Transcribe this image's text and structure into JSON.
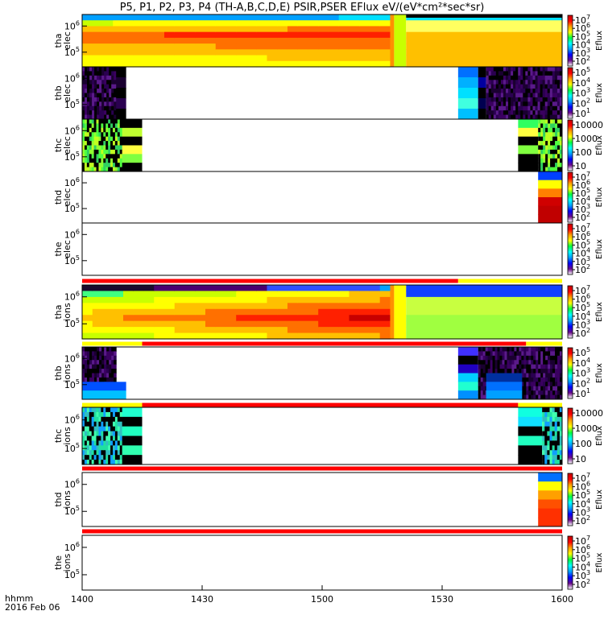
{
  "title": "P5, P1, P2, P3, P4 (TH-A,B,C,D,E) PSIR,PSER EFlux eV/(eV*cm²*sec*sr)",
  "footer": {
    "line1": "hhmm",
    "line2": "2016 Feb 06"
  },
  "x_axis": {
    "ticks": [
      "1400",
      "1430",
      "1500",
      "1530",
      "1600"
    ],
    "range_minutes_after_1400": [
      0,
      120
    ]
  },
  "colorbar_label": "Eflux",
  "chart_data": {
    "type": "heatmap",
    "x_unit": "time (hhmm), 2016 Feb 06",
    "y_scale": "log",
    "panels": [
      {
        "id": "tha_elec",
        "ylabel": [
          "tha",
          "elec"
        ],
        "y_ticks": [
          "10⁶",
          "10⁵"
        ],
        "cbar_ticks": [
          "10⁷",
          "10⁶",
          "10⁵",
          "10⁴",
          "10³",
          "10²"
        ],
        "cbar_label": "Eflux",
        "data_coverage_minutes": [
          [
            0,
            120
          ]
        ]
      },
      {
        "id": "thb_elec",
        "ylabel": [
          "thb",
          "elec"
        ],
        "y_ticks": [
          "10⁶",
          "10⁵"
        ],
        "cbar_ticks": [
          "10⁵",
          "10⁴",
          "10³",
          "10²",
          "10¹"
        ],
        "cbar_label": "Eflux",
        "data_coverage_minutes": [
          [
            0,
            11
          ],
          [
            94,
            120
          ]
        ]
      },
      {
        "id": "thc_elec",
        "ylabel": [
          "thc",
          "elec"
        ],
        "y_ticks": [
          "10⁶",
          "10⁵"
        ],
        "cbar_ticks": [
          "10000",
          "1000",
          "100",
          "10"
        ],
        "cbar_label": "Eflux",
        "data_coverage_minutes": [
          [
            0,
            15
          ],
          [
            109,
            120
          ]
        ]
      },
      {
        "id": "thd_elec",
        "ylabel": [
          "thd",
          "elec"
        ],
        "y_ticks": [
          "10⁶",
          "10⁵"
        ],
        "cbar_ticks": [
          "10⁷",
          "10⁶",
          "10⁵",
          "10⁴",
          "10³",
          "10²"
        ],
        "cbar_label": "Eflux",
        "data_coverage_minutes": [
          [
            114,
            120
          ]
        ]
      },
      {
        "id": "the_elec",
        "ylabel": [
          "the",
          "elec"
        ],
        "y_ticks": [
          "10⁶",
          "10⁵"
        ],
        "cbar_ticks": [
          "10⁷",
          "10⁶",
          "10⁵",
          "10⁴",
          "10³",
          "10²"
        ],
        "cbar_label": "Eflux",
        "data_coverage_minutes": []
      },
      {
        "id": "tha_ions",
        "ylabel": [
          "tha",
          "ions"
        ],
        "y_ticks": [
          "10⁶",
          "10⁵"
        ],
        "cbar_ticks": [
          "10⁷",
          "10⁶",
          "10⁵",
          "10⁴",
          "10³",
          "10²"
        ],
        "cbar_label": "Eflux",
        "data_coverage_minutes": [
          [
            0,
            120
          ]
        ]
      },
      {
        "id": "thb_ions",
        "ylabel": [
          "thb",
          "ions"
        ],
        "y_ticks": [
          "10⁶",
          "10⁵"
        ],
        "cbar_ticks": [
          "10⁵",
          "10⁴",
          "10³",
          "10²",
          "10¹"
        ],
        "cbar_label": "Eflux",
        "data_coverage_minutes": [
          [
            0,
            11
          ],
          [
            94,
            120
          ]
        ]
      },
      {
        "id": "thc_ions",
        "ylabel": [
          "thc",
          "ions"
        ],
        "y_ticks": [
          "10⁶",
          "10⁵"
        ],
        "cbar_ticks": [
          "10000",
          "1000",
          "100",
          "10"
        ],
        "cbar_label": "Eflux",
        "data_coverage_minutes": [
          [
            0,
            15
          ],
          [
            109,
            120
          ]
        ]
      },
      {
        "id": "thd_ions",
        "ylabel": [
          "thd",
          "ions"
        ],
        "y_ticks": [
          "10⁶",
          "10⁵"
        ],
        "cbar_ticks": [
          "10⁷",
          "10⁶",
          "10⁵",
          "10⁴",
          "10³",
          "10²"
        ],
        "cbar_label": "Eflux",
        "data_coverage_minutes": [
          [
            114,
            120
          ]
        ]
      },
      {
        "id": "the_ions",
        "ylabel": [
          "the",
          "ions"
        ],
        "y_ticks": [
          "10⁶",
          "10⁵"
        ],
        "cbar_ticks": [
          "10⁷",
          "10⁶",
          "10⁵",
          "10⁴",
          "10³",
          "10²"
        ],
        "cbar_label": "Eflux",
        "data_coverage_minutes": []
      }
    ],
    "mode_bars": [
      {
        "after_panel": "the_elec",
        "segments": [
          {
            "minutes": [
              0,
              94
            ],
            "color": "#ff0000"
          },
          {
            "minutes": [
              94,
              120
            ],
            "color": "#ffff00"
          }
        ]
      },
      {
        "after_panel": "tha_ions",
        "segments": [
          {
            "minutes": [
              0,
              15
            ],
            "color": "#ffff00"
          },
          {
            "minutes": [
              15,
              111
            ],
            "color": "#ff0000"
          },
          {
            "minutes": [
              111,
              120
            ],
            "color": "#ffff00"
          }
        ]
      },
      {
        "after_panel": "thb_ions",
        "segments": [
          {
            "minutes": [
              0,
              15
            ],
            "color": "#ffff00"
          },
          {
            "minutes": [
              15,
              109
            ],
            "color": "#ff0000"
          },
          {
            "minutes": [
              109,
              120
            ],
            "color": "#ffff00"
          }
        ]
      },
      {
        "after_panel": "thc_ions",
        "segments": [
          {
            "minutes": [
              0,
              120
            ],
            "color": "#ff0000"
          }
        ]
      },
      {
        "after_panel": "thd_ions",
        "segments": [
          {
            "minutes": [
              0,
              120
            ],
            "color": "#ff0000"
          }
        ]
      }
    ]
  }
}
